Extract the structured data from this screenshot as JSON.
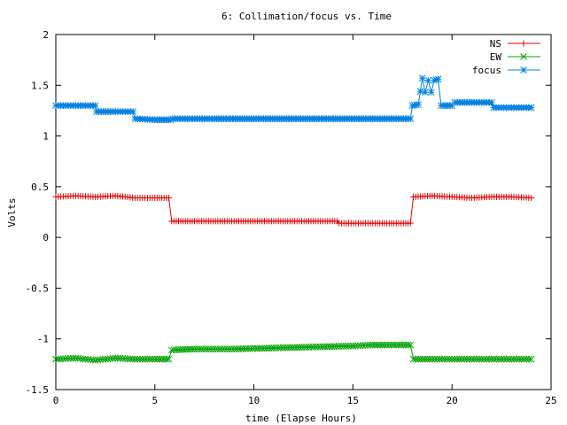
{
  "chart_data": {
    "type": "line",
    "title": "6: Collimation/focus vs. Time",
    "xlabel": "time (Elapse Hours)",
    "ylabel": "Volts",
    "xlim": [
      0,
      25
    ],
    "ylim": [
      -1.5,
      2
    ],
    "x_ticks": [
      0,
      5,
      10,
      15,
      20,
      25
    ],
    "y_ticks": [
      -1.5,
      -1,
      -0.5,
      0,
      0.5,
      1,
      1.5,
      2
    ],
    "x_tick_labels": [
      "0",
      "5",
      "10",
      "15",
      "20",
      "25"
    ],
    "y_tick_labels": [
      "-1.5",
      "-1",
      "-0.5",
      "0",
      "0.5",
      "1",
      "1.5",
      "2"
    ],
    "grid": false,
    "legend_position": "top-right",
    "series": [
      {
        "name": "NS",
        "color": "#e00000",
        "marker": "plus",
        "points": [
          [
            0,
            0.4
          ],
          [
            1,
            0.41
          ],
          [
            2,
            0.4
          ],
          [
            3,
            0.41
          ],
          [
            4,
            0.39
          ],
          [
            5,
            0.39
          ],
          [
            5.7,
            0.39
          ],
          [
            5.85,
            0.16
          ],
          [
            7,
            0.16
          ],
          [
            9,
            0.16
          ],
          [
            11,
            0.16
          ],
          [
            13,
            0.16
          ],
          [
            14.2,
            0.16
          ],
          [
            14.3,
            0.14
          ],
          [
            16,
            0.14
          ],
          [
            17.9,
            0.14
          ],
          [
            18.05,
            0.4
          ],
          [
            19,
            0.41
          ],
          [
            20,
            0.4
          ],
          [
            21,
            0.39
          ],
          [
            22,
            0.4
          ],
          [
            23,
            0.4
          ],
          [
            24,
            0.39
          ]
        ]
      },
      {
        "name": "EW",
        "color": "#00a000",
        "marker": "x",
        "points": [
          [
            0,
            -1.2
          ],
          [
            1,
            -1.19
          ],
          [
            2,
            -1.21
          ],
          [
            3,
            -1.19
          ],
          [
            4,
            -1.2
          ],
          [
            5,
            -1.2
          ],
          [
            5.7,
            -1.2
          ],
          [
            5.85,
            -1.11
          ],
          [
            7,
            -1.1
          ],
          [
            9,
            -1.1
          ],
          [
            11,
            -1.09
          ],
          [
            13,
            -1.08
          ],
          [
            15,
            -1.07
          ],
          [
            16,
            -1.06
          ],
          [
            17.9,
            -1.06
          ],
          [
            18.05,
            -1.2
          ],
          [
            19,
            -1.2
          ],
          [
            20,
            -1.2
          ],
          [
            21,
            -1.2
          ],
          [
            22,
            -1.2
          ],
          [
            23,
            -1.2
          ],
          [
            24,
            -1.2
          ]
        ]
      },
      {
        "name": "focus",
        "color": "#0080e0",
        "marker": "star",
        "points": [
          [
            0,
            1.3
          ],
          [
            1,
            1.3
          ],
          [
            2,
            1.3
          ],
          [
            2.05,
            1.24
          ],
          [
            3,
            1.24
          ],
          [
            3.9,
            1.24
          ],
          [
            4,
            1.17
          ],
          [
            5,
            1.16
          ],
          [
            5.8,
            1.16
          ],
          [
            5.9,
            1.17
          ],
          [
            8,
            1.17
          ],
          [
            10,
            1.17
          ],
          [
            12,
            1.17
          ],
          [
            14,
            1.17
          ],
          [
            16,
            1.17
          ],
          [
            17.9,
            1.17
          ],
          [
            18,
            1.3
          ],
          [
            18.3,
            1.31
          ],
          [
            18.5,
            1.57
          ],
          [
            18.65,
            1.43
          ],
          [
            18.8,
            1.55
          ],
          [
            18.95,
            1.43
          ],
          [
            19.1,
            1.55
          ],
          [
            19.3,
            1.56
          ],
          [
            19.45,
            1.3
          ],
          [
            20,
            1.3
          ],
          [
            20.15,
            1.33
          ],
          [
            21,
            1.33
          ],
          [
            22,
            1.33
          ],
          [
            22.1,
            1.28
          ],
          [
            23,
            1.28
          ],
          [
            24,
            1.28
          ]
        ]
      }
    ]
  }
}
